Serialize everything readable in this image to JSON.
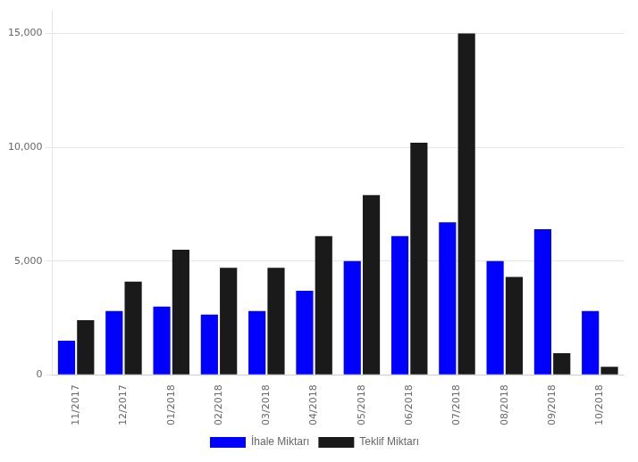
{
  "chart_data": {
    "type": "bar",
    "categories": [
      "11/2017",
      "12/2017",
      "01/2018",
      "02/2018",
      "03/2018",
      "04/2018",
      "05/2018",
      "06/2018",
      "07/2018",
      "08/2018",
      "09/2018",
      "10/2018"
    ],
    "series": [
      {
        "name": "İhale Miktarı",
        "color": "#0000FF",
        "values": [
          1500,
          2800,
          3000,
          2650,
          2800,
          3700,
          5000,
          6100,
          6700,
          5000,
          6400,
          2800
        ]
      },
      {
        "name": "Teklif Miktarı",
        "color": "#1a1a1a",
        "values": [
          2400,
          4100,
          5500,
          4700,
          4700,
          6100,
          7900,
          10200,
          15000,
          4300,
          950,
          350
        ]
      }
    ],
    "ylim": [
      0,
      16000
    ],
    "yticks": [
      0,
      {
        "value": 5000,
        "label": "5,000"
      },
      {
        "value": 10000,
        "label": "10,000"
      },
      {
        "value": 15000,
        "label": "15,000"
      }
    ],
    "grid": true,
    "legend": "bottom"
  }
}
